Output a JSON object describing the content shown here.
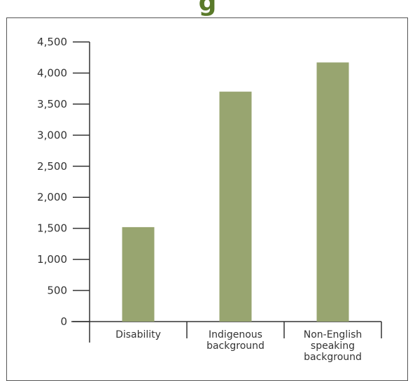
{
  "header": {
    "title_fragment": "g"
  },
  "chart_data": {
    "type": "bar",
    "categories": [
      "Disability",
      "Indigenous background",
      "Non-English speaking background"
    ],
    "category_lines": [
      [
        "Disability"
      ],
      [
        "Indigenous",
        "background"
      ],
      [
        "Non-English",
        "speaking",
        "background"
      ]
    ],
    "values": [
      1520,
      3700,
      4170
    ],
    "yticks": [
      0,
      500,
      1000,
      1500,
      2000,
      2500,
      3000,
      3500,
      4000,
      4500
    ],
    "ytick_labels": [
      "0",
      "500",
      "1,000",
      "1,500",
      "2,000",
      "2,500",
      "3,000",
      "3,500",
      "4,000",
      "4,500"
    ],
    "ylim": [
      0,
      4500
    ],
    "title": "",
    "xlabel": "",
    "ylabel": "",
    "grid": false,
    "colors": {
      "bar": "#98a570",
      "axis": "#333333",
      "frame": "#555555",
      "title": "#5a7a2a"
    }
  }
}
